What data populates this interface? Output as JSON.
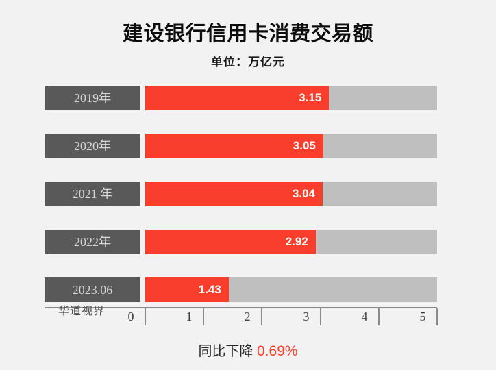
{
  "title": "建设银行信用卡消费交易额",
  "subtitle": "单位：万亿元",
  "watermark": "华道视界",
  "footer": {
    "label": "同比下降 ",
    "value": "0.69%"
  },
  "colors": {
    "background": "#f2f2f2",
    "bar_fill_red": "#f93e2c",
    "bar_track_gray": "#bfbfbf",
    "category_box_gray": "#595959",
    "accent_red": "#f93e2c"
  },
  "chart_data": {
    "type": "bar",
    "orientation": "horizontal",
    "title": "建设银行信用卡消费交易额",
    "unit_label": "单位：万亿元",
    "categories": [
      "2019年",
      "2020年",
      "2021 年",
      "2022年",
      "2023.06"
    ],
    "values": [
      3.15,
      3.05,
      3.04,
      2.92,
      1.43
    ],
    "value_labels": [
      "3.15",
      "3.05",
      "3.04",
      "2.92",
      "1.43"
    ],
    "xlabel": "",
    "ylabel": "",
    "xlim": [
      0,
      5
    ],
    "x_ticks": [
      "0",
      "1",
      "2",
      "3",
      "4",
      "5"
    ],
    "grid": false,
    "legend": false,
    "annotation": "同比下降 0.69%"
  }
}
